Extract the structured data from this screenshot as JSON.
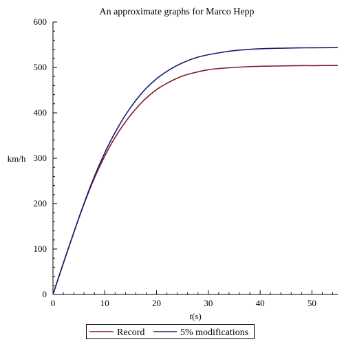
{
  "chart_data": {
    "type": "line",
    "title": "An approximate graphs for Marco Hepp",
    "xlabel": "t(s)",
    "ylabel": "km/h",
    "xlim": [
      0,
      55
    ],
    "ylim": [
      0,
      600
    ],
    "x_ticks": [
      "0",
      "10",
      "20",
      "30",
      "40",
      "50"
    ],
    "y_ticks": [
      "0",
      "100",
      "200",
      "300",
      "400",
      "500",
      "600"
    ],
    "grid": false,
    "legend_position": "bottom",
    "series": [
      {
        "name": "Record",
        "color": "#7f1a2b",
        "x": [
          0,
          2.5,
          5,
          7.5,
          10,
          12.5,
          15,
          17.5,
          20,
          22.5,
          25,
          27.5,
          30,
          32.5,
          35,
          37.5,
          40,
          42.5,
          45,
          47.5,
          50,
          52.5,
          55
        ],
        "y": [
          0,
          85,
          168,
          243,
          305,
          355,
          395,
          427,
          451,
          468,
          481,
          489,
          495,
          498,
          500,
          501.5,
          502.5,
          503,
          503.5,
          504,
          504,
          504.2,
          504.3
        ]
      },
      {
        "name": "5% modifications",
        "color": "#1a1a70",
        "x": [
          0,
          2.5,
          5,
          7.5,
          10,
          12.5,
          15,
          17.5,
          20,
          22.5,
          25,
          27.5,
          30,
          32.5,
          35,
          37.5,
          40,
          42.5,
          45,
          47.5,
          50,
          52.5,
          55
        ],
        "y": [
          0,
          86,
          169,
          246,
          312,
          367,
          412,
          448,
          475,
          495,
          510,
          521,
          528,
          533,
          537,
          539.5,
          541,
          542,
          542.5,
          543,
          543.3,
          543.5,
          543.7
        ]
      }
    ]
  }
}
